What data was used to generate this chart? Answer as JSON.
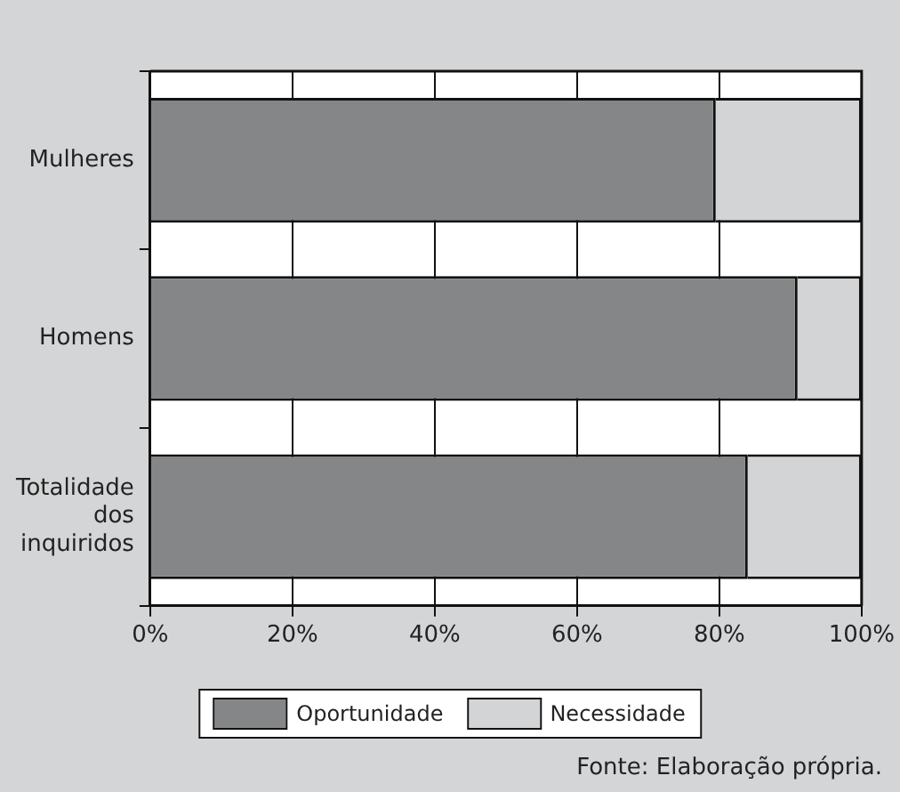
{
  "chart_data": {
    "type": "bar",
    "orientation": "horizontal",
    "stacked": true,
    "categories": [
      "Mulheres",
      "Homens",
      "Totalidade dos inquiridos"
    ],
    "series": [
      {
        "name": "Oportunidade",
        "color": "#858687",
        "values": [
          79.5,
          91,
          84
        ]
      },
      {
        "name": "Necessidade",
        "color": "#d3d4d6",
        "values": [
          20.5,
          9,
          16
        ]
      }
    ],
    "xlim": [
      0,
      100
    ],
    "xticks": [
      {
        "value": 0,
        "label": "0%"
      },
      {
        "value": 20,
        "label": "20%"
      },
      {
        "value": 40,
        "label": "40%"
      },
      {
        "value": 60,
        "label": "60%"
      },
      {
        "value": 80,
        "label": "80%"
      },
      {
        "value": 100,
        "label": "100%"
      }
    ],
    "grid": "x",
    "legend": "bottom",
    "annotations": [
      "Fonte: Elaboração própria."
    ]
  }
}
